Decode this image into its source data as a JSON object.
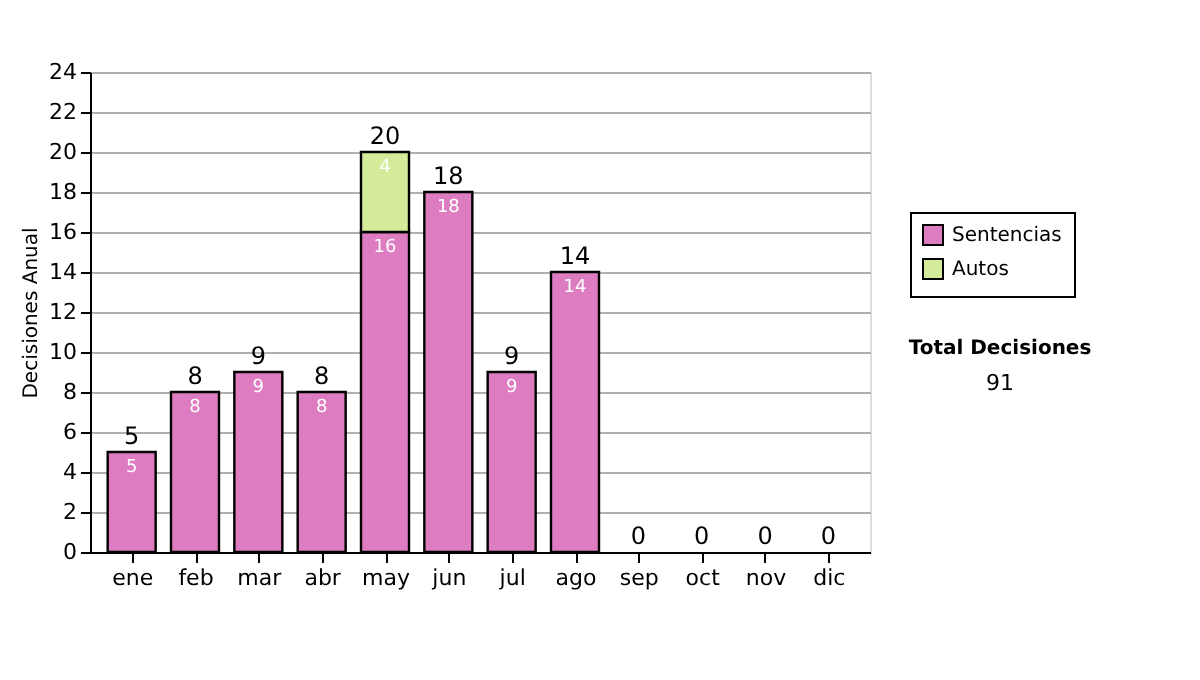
{
  "chart_data": {
    "type": "bar",
    "stacked": true,
    "ylabel": "Decisiones Anual",
    "categories": [
      "ene",
      "feb",
      "mar",
      "abr",
      "may",
      "jun",
      "jul",
      "ago",
      "sep",
      "oct",
      "nov",
      "dic"
    ],
    "series": [
      {
        "name": "Sentencias",
        "color": "#dd7cc0",
        "values": [
          5,
          8,
          9,
          8,
          16,
          18,
          9,
          14,
          0,
          0,
          0,
          0
        ],
        "value_labels": [
          "5",
          "8",
          "9",
          "8",
          "16",
          "18",
          "9",
          "14",
          null,
          null,
          null,
          null
        ]
      },
      {
        "name": "Autos",
        "color": "#d4ec9a",
        "values": [
          0,
          0,
          0,
          0,
          4,
          0,
          0,
          0,
          0,
          0,
          0,
          0
        ],
        "value_labels": [
          null,
          null,
          null,
          null,
          "4",
          null,
          null,
          null,
          null,
          null,
          null,
          null
        ]
      }
    ],
    "totals": [
      "5",
      "8",
      "9",
      "8",
      "20",
      "18",
      "9",
      "14",
      "0",
      "0",
      "0",
      "0"
    ],
    "ylim": [
      0,
      24
    ],
    "yticks": [
      0,
      2,
      4,
      6,
      8,
      10,
      12,
      14,
      16,
      18,
      20,
      22,
      24
    ],
    "grid": "y",
    "legend": "right",
    "annotations": [
      "Total Decisiones",
      "91"
    ]
  }
}
